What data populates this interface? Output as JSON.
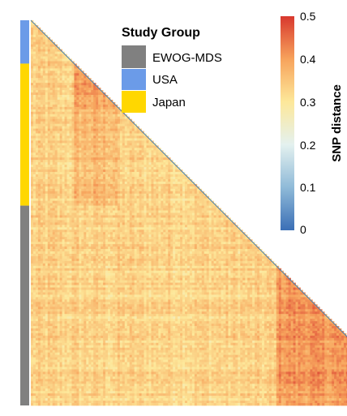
{
  "chart_data": {
    "type": "heatmap",
    "title": "",
    "matrix_shape": "lower-triangle",
    "legend": {
      "title": "Study Group",
      "position": "top-center",
      "entries": [
        {
          "name": "EWOG-MDS",
          "color": "#808080"
        },
        {
          "name": "USA",
          "color": "#6b9be8"
        },
        {
          "name": "Japan",
          "color": "#ffd700"
        }
      ]
    },
    "groups_top_to_bottom": [
      {
        "name": "USA",
        "fraction_of_samples": 0.11
      },
      {
        "name": "Japan",
        "fraction_of_samples": 0.37
      },
      {
        "name": "EWOG-MDS",
        "fraction_of_samples": 0.52
      }
    ],
    "colorbar": {
      "title": "SNP distance",
      "min": 0,
      "max": 0.5,
      "ticks": [
        "0",
        "0.1",
        "0.2",
        "0.3",
        "0.4",
        "0.5"
      ],
      "colors": [
        "#3b6fb6",
        "#8fbad8",
        "#e4f1ef",
        "#fde89a",
        "#f7a35c",
        "#d8382e"
      ]
    },
    "typical_distance": {
      "background": 0.33,
      "within_japan_subcluster": 0.4,
      "within_ewog_block": 0.41
    }
  }
}
